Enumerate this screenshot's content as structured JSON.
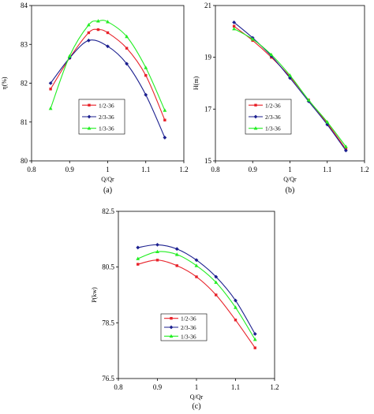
{
  "chart_data": [
    {
      "type": "line",
      "panel_label": "(a)",
      "xlabel": "Q/Qr",
      "ylabel": "η(%)",
      "xlim": [
        0.8,
        1.2
      ],
      "ylim": [
        80,
        84
      ],
      "xticks": [
        "0.8",
        "0.9",
        "1",
        "1.1",
        "1.2"
      ],
      "yticks": [
        "80",
        "81",
        "82",
        "83",
        "84"
      ],
      "grid": false,
      "legend_position": "bottom-center",
      "series": [
        {
          "name": "1/2-36",
          "color": "#e8222a",
          "marker": "square",
          "x": [
            0.85,
            0.9,
            0.95,
            0.975,
            1.0,
            1.05,
            1.1,
            1.15
          ],
          "y": [
            81.85,
            82.65,
            83.3,
            83.38,
            83.3,
            82.9,
            82.2,
            81.05
          ]
        },
        {
          "name": "2/3-36",
          "color": "#1b1f8f",
          "marker": "diamond",
          "x": [
            0.85,
            0.9,
            0.95,
            1.0,
            1.05,
            1.1,
            1.15
          ],
          "y": [
            82.0,
            82.65,
            83.1,
            82.95,
            82.5,
            81.7,
            80.6
          ]
        },
        {
          "name": "1/3-36",
          "color": "#22ee22",
          "marker": "triangle",
          "x": [
            0.85,
            0.9,
            0.95,
            0.975,
            1.0,
            1.05,
            1.1,
            1.15
          ],
          "y": [
            81.35,
            82.7,
            83.5,
            83.6,
            83.58,
            83.2,
            82.4,
            81.3
          ]
        }
      ]
    },
    {
      "type": "line",
      "panel_label": "(b)",
      "xlabel": "Q/Qr",
      "ylabel": "H(m)",
      "xlim": [
        0.8,
        1.2
      ],
      "ylim": [
        15,
        21
      ],
      "xticks": [
        "0.8",
        "0.9",
        "1",
        "1.1",
        "1.2"
      ],
      "yticks": [
        "15",
        "17",
        "19",
        "21"
      ],
      "grid": false,
      "legend_position": "bottom-left",
      "series": [
        {
          "name": "1/2-36",
          "color": "#e8222a",
          "marker": "square",
          "x": [
            0.85,
            0.9,
            0.95,
            1.0,
            1.05,
            1.1,
            1.15
          ],
          "y": [
            20.2,
            19.65,
            19.0,
            18.25,
            17.35,
            16.45,
            15.45
          ]
        },
        {
          "name": "2/3-36",
          "color": "#1b1f8f",
          "marker": "diamond",
          "x": [
            0.85,
            0.9,
            0.95,
            1.0,
            1.05,
            1.1,
            1.15
          ],
          "y": [
            20.35,
            19.75,
            19.05,
            18.2,
            17.3,
            16.4,
            15.4
          ]
        },
        {
          "name": "1/3-36",
          "color": "#22ee22",
          "marker": "triangle",
          "x": [
            0.85,
            0.9,
            0.95,
            1.0,
            1.05,
            1.1,
            1.15
          ],
          "y": [
            20.1,
            19.7,
            19.1,
            18.3,
            17.35,
            16.5,
            15.55
          ]
        }
      ]
    },
    {
      "type": "line",
      "panel_label": "(c)",
      "xlabel": "Q/Qr",
      "ylabel": "P(kw)",
      "xlim": [
        0.8,
        1.2
      ],
      "ylim": [
        76.5,
        82.5
      ],
      "xticks": [
        "0.8",
        "0.9",
        "1",
        "1.1",
        "1.2"
      ],
      "yticks": [
        "76.5",
        "78.5",
        "80.5",
        "82.5"
      ],
      "grid": false,
      "legend_position": "bottom-center",
      "series": [
        {
          "name": "1/2-36",
          "color": "#e8222a",
          "marker": "square",
          "x": [
            0.85,
            0.9,
            0.95,
            1.0,
            1.05,
            1.1,
            1.15
          ],
          "y": [
            80.6,
            80.75,
            80.55,
            80.15,
            79.5,
            78.6,
            77.6
          ]
        },
        {
          "name": "2/3-36",
          "color": "#1b1f8f",
          "marker": "diamond",
          "x": [
            0.85,
            0.9,
            0.95,
            1.0,
            1.05,
            1.1,
            1.15
          ],
          "y": [
            81.2,
            81.3,
            81.15,
            80.75,
            80.15,
            79.3,
            78.1
          ]
        },
        {
          "name": "1/3-36",
          "color": "#22ee22",
          "marker": "triangle",
          "x": [
            0.85,
            0.9,
            0.95,
            1.0,
            1.05,
            1.1,
            1.15
          ],
          "y": [
            80.8,
            81.05,
            80.95,
            80.55,
            79.95,
            79.05,
            77.9
          ]
        }
      ]
    }
  ]
}
